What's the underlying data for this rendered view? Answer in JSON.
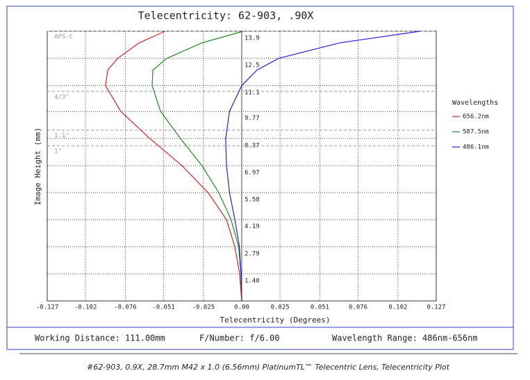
{
  "chart_data": {
    "type": "line",
    "title": "Telecentricity: 62-903, .90X",
    "xlabel": "Telecentricity (Degrees)",
    "ylabel": "Image Height (mm)",
    "xlim": [
      -0.127,
      0.127
    ],
    "ylim": [
      0,
      13.9
    ],
    "xticks": [
      -0.127,
      -0.102,
      -0.076,
      -0.051,
      -0.025,
      {
        "value": 0,
        "label": "0.00"
      },
      0.025,
      0.051,
      0.076,
      0.102,
      0.127
    ],
    "yticks": [
      {
        "value": 1.4,
        "label": "1.40"
      },
      2.79,
      4.19,
      5.58,
      6.97,
      8.37,
      9.77,
      11.1,
      12.5,
      13.9
    ],
    "grid": true,
    "legend_title": "Wavelengths",
    "legend_position": "right",
    "annotations": [
      {
        "label": "APS-C",
        "value": 13.9
      },
      {
        "label": "4/3\"",
        "value": 10.8
      },
      {
        "label": "1.1\"",
        "value": 8.8
      },
      {
        "label": "1\"",
        "value": 8.0
      }
    ],
    "series": [
      {
        "name": "656.2nm",
        "color": "#e02020",
        "x": [
          0,
          -0.0014,
          -0.0045,
          -0.01,
          -0.022,
          -0.039,
          -0.06,
          -0.079,
          -0.089,
          -0.0875,
          -0.081,
          -0.067,
          -0.05
        ],
        "values": [
          0,
          1.4,
          2.79,
          4.19,
          5.58,
          6.97,
          8.37,
          9.77,
          11.1,
          11.9,
          12.5,
          13.3,
          13.9
        ]
      },
      {
        "name": "587.5nm",
        "color": "#1a8a1a",
        "x": [
          0,
          -0.0005,
          -0.002,
          -0.007,
          -0.015,
          -0.026,
          -0.04,
          -0.053,
          -0.0585,
          -0.058,
          -0.049,
          -0.026,
          0.001
        ],
        "values": [
          0,
          1.4,
          2.79,
          4.19,
          5.58,
          6.97,
          8.37,
          9.77,
          11.1,
          11.9,
          12.5,
          13.3,
          13.9
        ]
      },
      {
        "name": "486.1nm",
        "color": "#2020e0",
        "x": [
          0,
          -0.0005,
          -0.0015,
          -0.0045,
          -0.008,
          -0.01,
          -0.0105,
          -0.008,
          0,
          0.01,
          0.024,
          0.064,
          0.1165
        ],
        "values": [
          0,
          1.4,
          2.79,
          4.19,
          5.58,
          6.97,
          8.37,
          9.77,
          11.1,
          11.9,
          12.5,
          13.3,
          13.9
        ]
      }
    ]
  },
  "footer": {
    "working_distance": "Working Distance: 111.00mm",
    "f_number": "F/Number: f/6.00",
    "wavelength_range": "Wavelength Range: 486nm-656nm"
  },
  "caption": "#62-903, 0.9X, 28.7mm M42 x 1.0 (6.56mm) PlatinumTL™ Telecentric Lens, Telecentricity Plot"
}
